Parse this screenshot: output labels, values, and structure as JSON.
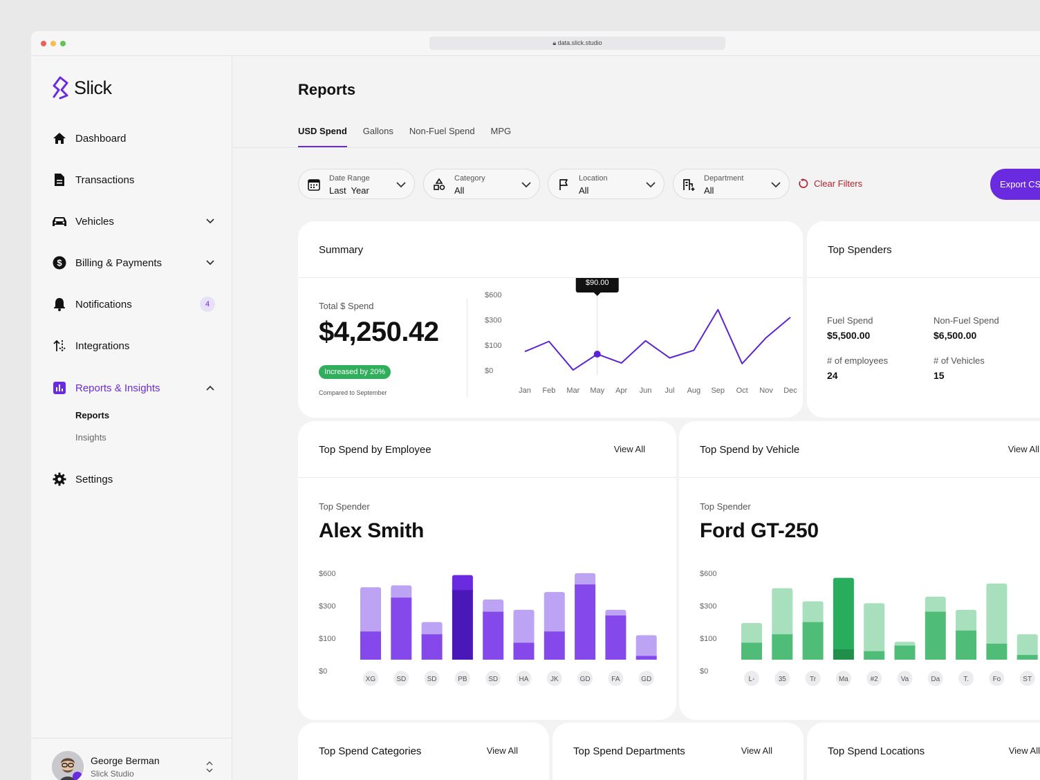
{
  "browser": {
    "url": "data.slick.studio"
  },
  "brand": {
    "name": "Slick",
    "color": "#6a2be0"
  },
  "sidebar": {
    "items": [
      {
        "label": "Dashboard",
        "icon": "home-icon"
      },
      {
        "label": "Transactions",
        "icon": "document-icon"
      },
      {
        "label": "Vehicles",
        "icon": "car-icon"
      },
      {
        "label": "Billing & Payments",
        "icon": "dollar-icon"
      },
      {
        "label": "Notifications",
        "icon": "bell-icon",
        "badge": "4"
      },
      {
        "label": "Integrations",
        "icon": "sort-icon"
      },
      {
        "label": "Reports & Insights",
        "icon": "chart-icon"
      },
      {
        "label": "Settings",
        "icon": "gear-icon"
      }
    ],
    "subitems": [
      "Reports",
      "Insights"
    ]
  },
  "user": {
    "name": "George Berman",
    "org": "Slick Studio"
  },
  "page": {
    "title": "Reports"
  },
  "tabs": [
    "USD Spend",
    "Gallons",
    "Non-Fuel Spend",
    "MPG"
  ],
  "filters": [
    {
      "label": "Date Range",
      "value": "Last  Year",
      "icon": "calendar-icon"
    },
    {
      "label": "Category",
      "value": "All",
      "icon": "shapes-icon"
    },
    {
      "label": "Location",
      "value": "All",
      "icon": "flag-icon"
    },
    {
      "label": "Department",
      "value": "All",
      "icon": "building-icon"
    }
  ],
  "actions": {
    "clear": "Clear Filters",
    "export": "Export CSV"
  },
  "summary": {
    "title": "Summary",
    "total_label": "Total $ Spend",
    "total": "$4,250.42",
    "increase": "Increased by 20%",
    "compared": "Compared to September",
    "tooltip": "$90.00"
  },
  "top_spenders": {
    "title": "Top Spenders",
    "fuel_label": "Fuel Spend",
    "fuel": "$5,500.00",
    "nonfuel_label": "Non-Fuel Spend",
    "nonfuel": "$6,500.00",
    "employees_label": "# of employees",
    "employees": "24",
    "vehicles_label": "# of Vehicles",
    "vehicles": "15"
  },
  "employee_card": {
    "title": "Top Spend by Employee",
    "view_all": "View All",
    "top_label": "Top Spender",
    "name": "Alex Smith"
  },
  "vehicle_card": {
    "title": "Top Spend by Vehicle",
    "view_all": "View All",
    "top_label": "Top Spender",
    "name": "Ford GT-250"
  },
  "bottom_cards": [
    {
      "title": "Top Spend Categories",
      "view_all": "View All"
    },
    {
      "title": "Top Spend Departments",
      "view_all": "View All"
    },
    {
      "title": "Top Spend Locations",
      "view_all": "View All"
    }
  ],
  "chart_data": [
    {
      "type": "line",
      "categories": [
        "Jan",
        "Feb",
        "Mar",
        "May",
        "Apr",
        "Jun",
        "Jul",
        "Aug",
        "Sep",
        "Oct",
        "Nov",
        "Dec"
      ],
      "yticks": [
        "$600",
        "$300",
        "$100",
        "$0"
      ],
      "values": [
        0.42,
        0.58,
        0.13,
        0.38,
        0.24,
        0.59,
        0.32,
        0.44,
        1.08,
        0.23,
        0.64,
        0.96
      ],
      "highlight_index": 3,
      "color": "#5b22d6"
    },
    {
      "type": "bar",
      "stacked": true,
      "categories": [
        "XG",
        "SD",
        "SD",
        "PB",
        "SD",
        "HA",
        "JK",
        "GD",
        "FA",
        "GD"
      ],
      "yticks": [
        "$600",
        "$300",
        "$100",
        "$0"
      ],
      "series": [
        {
          "values": [
            0.3,
            0.66,
            0.27,
            0.74,
            0.51,
            0.18,
            0.3,
            0.8,
            0.47,
            0.04
          ]
        },
        {
          "values": [
            0.47,
            0.13,
            0.13,
            0.16,
            0.13,
            0.35,
            0.42,
            0.12,
            0.06,
            0.22
          ]
        }
      ],
      "highlight_index": 3,
      "colors": {
        "dark": "#8549eb",
        "light": "#bda3f3",
        "hi_dark": "#4a17b8",
        "hi_light": "#6a2be0"
      }
    },
    {
      "type": "bar",
      "stacked": true,
      "categories": [
        "L-",
        "35",
        "Tr",
        "Ma",
        "#2",
        "Va",
        "Da",
        "T.",
        "Fo",
        "ST"
      ],
      "yticks": [
        "$600",
        "$300",
        "$100",
        "$0"
      ],
      "series": [
        {
          "values": [
            0.18,
            0.27,
            0.4,
            0.11,
            0.09,
            0.15,
            0.51,
            0.31,
            0.17,
            0.05
          ]
        },
        {
          "values": [
            0.21,
            0.49,
            0.22,
            0.76,
            0.51,
            0.04,
            0.16,
            0.22,
            0.64,
            0.22
          ]
        }
      ],
      "highlight_index": 3,
      "colors": {
        "dark": "#4fbc78",
        "light": "#a8dfbd",
        "hi_dark": "#1f8f4a",
        "hi_light": "#28ad5c"
      }
    }
  ]
}
